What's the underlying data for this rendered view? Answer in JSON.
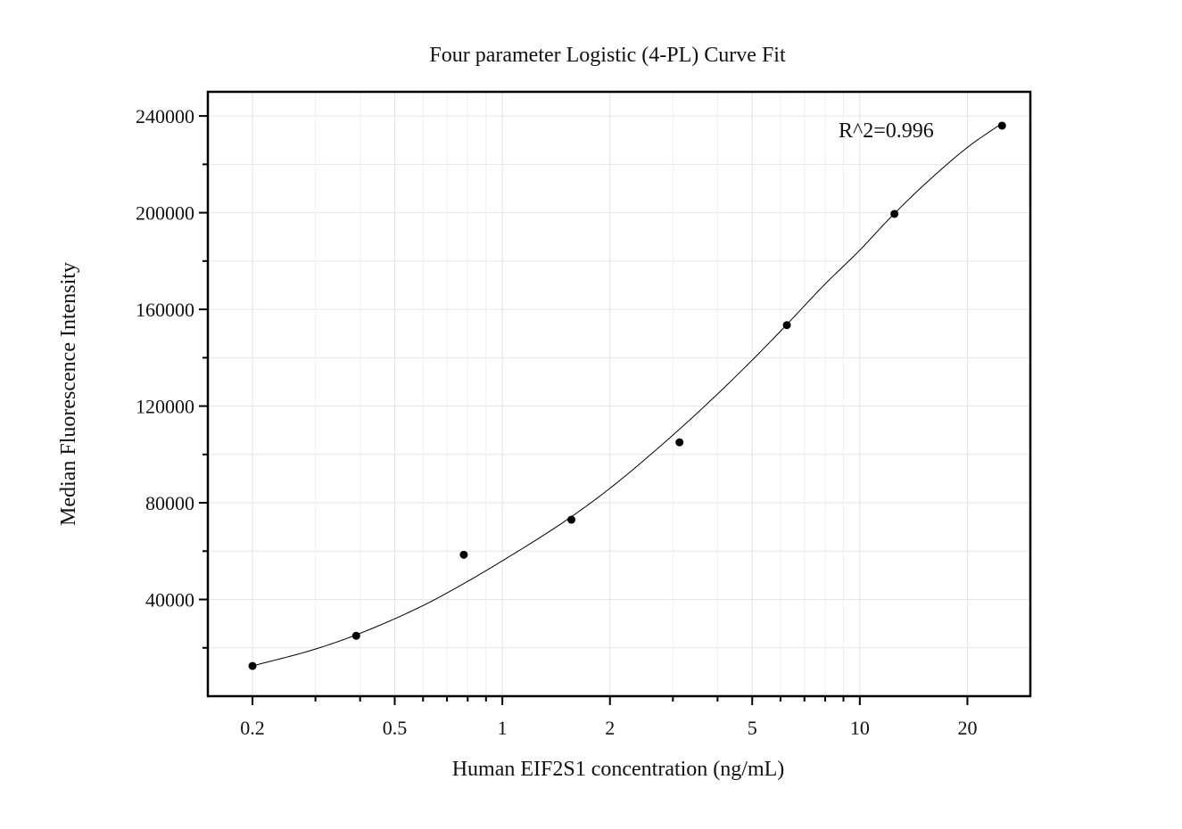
{
  "chart_data": {
    "type": "scatter",
    "title": "Four parameter Logistic (4-PL) Curve Fit",
    "xlabel": "Human EIF2S1 concentration (ng/mL)",
    "ylabel": "Median Fluorescence Intensity",
    "x_scale": "log",
    "xlim": [
      0.15,
      30
    ],
    "ylim": [
      0,
      250000
    ],
    "x_ticks": [
      0.2,
      0.5,
      1,
      2,
      5,
      10,
      20
    ],
    "x_tick_labels": [
      "0.2",
      "0.5",
      "1",
      "2",
      "5",
      "10",
      "20"
    ],
    "y_ticks": [
      40000,
      80000,
      120000,
      160000,
      200000,
      240000
    ],
    "y_tick_labels": [
      "40000",
      "80000",
      "120000",
      "160000",
      "200000",
      "240000"
    ],
    "grid": true,
    "annotation": "R^2=0.996",
    "points": {
      "x": [
        0.2,
        0.39,
        0.78,
        1.56,
        3.13,
        6.25,
        12.5,
        25
      ],
      "y": [
        12500,
        25000,
        58500,
        73000,
        105000,
        153500,
        199500,
        236000
      ]
    },
    "fit_curve": {
      "model": "4PL",
      "x": [
        0.2,
        0.3,
        0.4,
        0.6,
        0.8,
        1,
        1.5,
        2,
        3,
        4,
        5,
        6,
        8,
        10,
        12,
        15,
        20,
        25
      ],
      "y": [
        12500,
        19500,
        26000,
        37500,
        47500,
        56000,
        72500,
        86000,
        108000,
        125000,
        139000,
        151000,
        170500,
        184500,
        197000,
        211000,
        227000,
        237000
      ]
    }
  }
}
